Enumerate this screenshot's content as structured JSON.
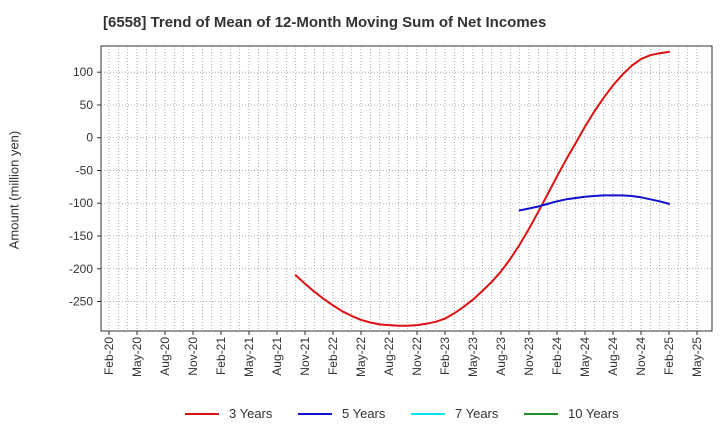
{
  "chart_data": {
    "type": "line",
    "title": "[6558]  Trend of Mean of 12-Month Moving Sum of Net Incomes",
    "ylabel": "Amount (million yen)",
    "xlabel": "",
    "ylim": [
      -295,
      140
    ],
    "yticks": [
      100,
      50,
      0,
      -50,
      -100,
      -150,
      -200,
      -250
    ],
    "x_start": "Feb-20",
    "x_tick_labels": [
      "Feb-20",
      "May-20",
      "Aug-20",
      "Nov-20",
      "Feb-21",
      "May-21",
      "Aug-21",
      "Nov-21",
      "Feb-22",
      "May-22",
      "Aug-22",
      "Nov-22",
      "Feb-23",
      "May-23",
      "Aug-23",
      "Nov-23",
      "Feb-24",
      "May-24",
      "Aug-24",
      "Nov-24",
      "Feb-25",
      "May-25"
    ],
    "grid": true,
    "legend_position": "bottom",
    "series": [
      {
        "name": "3 Years",
        "color": "#dd1111",
        "x": [
          "Oct-21",
          "Nov-21",
          "Dec-21",
          "Jan-22",
          "Feb-22",
          "Mar-22",
          "Apr-22",
          "May-22",
          "Jun-22",
          "Jul-22",
          "Aug-22",
          "Sep-22",
          "Oct-22",
          "Nov-22",
          "Dec-22",
          "Jan-23",
          "Feb-23",
          "Mar-23",
          "Apr-23",
          "May-23",
          "Jun-23",
          "Jul-23",
          "Aug-23",
          "Sep-23",
          "Oct-23",
          "Nov-23",
          "Dec-23",
          "Jan-24",
          "Feb-24",
          "Mar-24",
          "Apr-24",
          "May-24",
          "Jun-24",
          "Jul-24",
          "Aug-24",
          "Sep-24",
          "Oct-24",
          "Nov-24",
          "Dec-24",
          "Jan-25",
          "Feb-25"
        ],
        "values": [
          -210,
          -223,
          -235,
          -246,
          -256,
          -265,
          -272,
          -278,
          -282,
          -285,
          -286,
          -287,
          -287,
          -286,
          -284,
          -281,
          -276,
          -268,
          -258,
          -247,
          -234,
          -220,
          -204,
          -185,
          -163,
          -139,
          -113,
          -86,
          -59,
          -33,
          -8,
          17,
          40,
          61,
          80,
          96,
          110,
          120,
          126,
          129,
          131
        ]
      },
      {
        "name": "5 Years",
        "color": "#1111cc",
        "x": [
          "Oct-23",
          "Nov-23",
          "Dec-23",
          "Jan-24",
          "Feb-24",
          "Mar-24",
          "Apr-24",
          "May-24",
          "Jun-24",
          "Jul-24",
          "Aug-24",
          "Sep-24",
          "Oct-24",
          "Nov-24",
          "Dec-24",
          "Jan-25",
          "Feb-25"
        ],
        "values": [
          -111,
          -108,
          -105,
          -101,
          -97,
          -94,
          -92,
          -90,
          -89,
          -88,
          -88,
          -88,
          -89,
          -91,
          -94,
          -97,
          -101
        ]
      },
      {
        "name": "7 Years",
        "color": "#00e5ee",
        "x": [],
        "values": []
      },
      {
        "name": "10 Years",
        "color": "#228b22",
        "x": [],
        "values": []
      }
    ]
  }
}
